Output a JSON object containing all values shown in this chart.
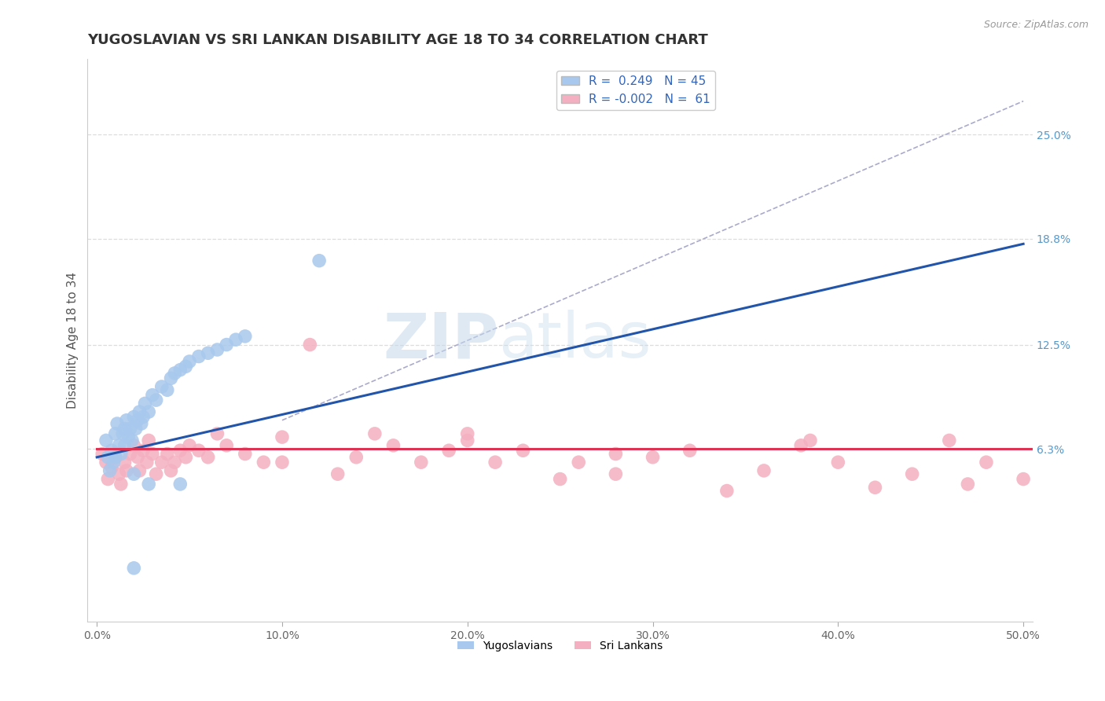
{
  "title": "YUGOSLAVIAN VS SRI LANKAN DISABILITY AGE 18 TO 34 CORRELATION CHART",
  "source_text": "Source: ZipAtlas.com",
  "xlabel": "",
  "ylabel": "Disability Age 18 to 34",
  "xlim": [
    -0.005,
    0.505
  ],
  "ylim": [
    -0.04,
    0.295
  ],
  "xtick_labels": [
    "0.0%",
    "10.0%",
    "20.0%",
    "30.0%",
    "40.0%",
    "50.0%"
  ],
  "xtick_vals": [
    0.0,
    0.1,
    0.2,
    0.3,
    0.4,
    0.5
  ],
  "right_ytick_labels": [
    "6.3%",
    "12.5%",
    "18.8%",
    "25.0%"
  ],
  "right_ytick_vals": [
    0.063,
    0.125,
    0.188,
    0.25
  ],
  "legend_r1": "R =  0.249",
  "legend_n1": "N = 45",
  "legend_r2": "R = -0.002",
  "legend_n2": "N =  61",
  "blue_color": "#A8C8ED",
  "pink_color": "#F4B0C0",
  "line_blue": "#2255AA",
  "line_pink": "#DD3355",
  "line_dash": "#AAAACC",
  "grid_color": "#DDDDDD",
  "background_color": "#FFFFFF",
  "blue_scatter_x": [
    0.005,
    0.006,
    0.007,
    0.008,
    0.009,
    0.01,
    0.01,
    0.011,
    0.012,
    0.013,
    0.014,
    0.015,
    0.015,
    0.016,
    0.017,
    0.018,
    0.019,
    0.02,
    0.021,
    0.022,
    0.023,
    0.024,
    0.025,
    0.026,
    0.028,
    0.03,
    0.032,
    0.035,
    0.038,
    0.04,
    0.042,
    0.045,
    0.048,
    0.05,
    0.055,
    0.06,
    0.065,
    0.07,
    0.075,
    0.08,
    0.02,
    0.028,
    0.045,
    0.12,
    0.02
  ],
  "blue_scatter_y": [
    0.068,
    0.058,
    0.05,
    0.062,
    0.055,
    0.072,
    0.058,
    0.078,
    0.065,
    0.06,
    0.072,
    0.075,
    0.065,
    0.08,
    0.07,
    0.075,
    0.068,
    0.082,
    0.075,
    0.08,
    0.085,
    0.078,
    0.082,
    0.09,
    0.085,
    0.095,
    0.092,
    0.1,
    0.098,
    0.105,
    0.108,
    0.11,
    0.112,
    0.115,
    0.118,
    0.12,
    0.122,
    0.125,
    0.128,
    0.13,
    0.048,
    0.042,
    0.042,
    0.175,
    -0.008
  ],
  "pink_scatter_x": [
    0.003,
    0.005,
    0.006,
    0.008,
    0.01,
    0.012,
    0.013,
    0.015,
    0.016,
    0.018,
    0.02,
    0.022,
    0.023,
    0.025,
    0.027,
    0.028,
    0.03,
    0.032,
    0.035,
    0.038,
    0.04,
    0.042,
    0.045,
    0.048,
    0.05,
    0.055,
    0.06,
    0.065,
    0.07,
    0.08,
    0.09,
    0.1,
    0.115,
    0.13,
    0.14,
    0.15,
    0.16,
    0.175,
    0.19,
    0.2,
    0.215,
    0.23,
    0.25,
    0.26,
    0.28,
    0.3,
    0.32,
    0.34,
    0.36,
    0.385,
    0.4,
    0.42,
    0.44,
    0.46,
    0.48,
    0.5,
    0.2,
    0.1,
    0.28,
    0.38,
    0.47
  ],
  "pink_scatter_y": [
    0.06,
    0.055,
    0.045,
    0.052,
    0.058,
    0.048,
    0.042,
    0.055,
    0.05,
    0.06,
    0.065,
    0.058,
    0.05,
    0.062,
    0.055,
    0.068,
    0.06,
    0.048,
    0.055,
    0.06,
    0.05,
    0.055,
    0.062,
    0.058,
    0.065,
    0.062,
    0.058,
    0.072,
    0.065,
    0.06,
    0.055,
    0.07,
    0.125,
    0.048,
    0.058,
    0.072,
    0.065,
    0.055,
    0.062,
    0.068,
    0.055,
    0.062,
    0.045,
    0.055,
    0.048,
    0.058,
    0.062,
    0.038,
    0.05,
    0.068,
    0.055,
    0.04,
    0.048,
    0.068,
    0.055,
    0.045,
    0.072,
    0.055,
    0.06,
    0.065,
    0.042
  ],
  "dash_line_x": [
    0.1,
    0.5
  ],
  "dash_line_y": [
    0.08,
    0.27
  ],
  "watermark_text": "ZIP",
  "watermark_text2": "atlas",
  "title_fontsize": 13,
  "label_fontsize": 11,
  "tick_fontsize": 10,
  "legend_fontsize": 11
}
